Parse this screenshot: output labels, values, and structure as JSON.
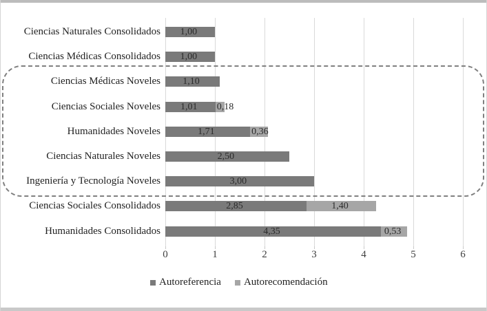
{
  "chart_data": {
    "type": "bar",
    "orientation": "horizontal",
    "stacked": true,
    "title": "",
    "xlabel": "",
    "ylabel": "",
    "xlim": [
      0,
      6
    ],
    "x_ticks": [
      "0",
      "1",
      "2",
      "3",
      "4",
      "5",
      "6"
    ],
    "grid": true,
    "legend_position": "bottom",
    "categories": [
      "Ciencias Naturales Consolidados",
      "Ciencias Médicas Consolidados",
      "Ciencias Médicas Noveles",
      "Ciencias Sociales Noveles",
      "Humanidades Noveles",
      "Ciencias Naturales Noveles",
      "Ingeniería y Tecnología Noveles",
      "Ciencias Sociales Consolidados",
      "Humanidades Consolidados"
    ],
    "series": [
      {
        "name": "Autoreferencia",
        "color": "#7a7a7a",
        "values": [
          1.0,
          1.0,
          1.1,
          1.01,
          1.71,
          2.5,
          3.0,
          2.85,
          4.35
        ]
      },
      {
        "name": "Autorecomendación",
        "color": "#a6a6a6",
        "values": [
          0,
          0,
          0,
          0.18,
          0.36,
          0,
          0,
          1.4,
          0.53
        ]
      }
    ],
    "value_labels": [
      [
        "1,00",
        ""
      ],
      [
        "1,00",
        ""
      ],
      [
        "1,10",
        ""
      ],
      [
        "1,01",
        "0,18"
      ],
      [
        "1,71",
        "0,36"
      ],
      [
        "2,50",
        ""
      ],
      [
        "3,00",
        ""
      ],
      [
        "2,85",
        "1,40"
      ],
      [
        "4,35",
        "0,53"
      ]
    ],
    "annotation": {
      "type": "dashed-box",
      "encloses_categories": [
        "Ciencias Médicas Noveles",
        "Ciencias Sociales Noveles",
        "Humanidades Noveles",
        "Ciencias Naturales Noveles",
        "Ingeniería y Tecnología Noveles"
      ]
    }
  },
  "colors": {
    "autoreferencia": "#7a7a7a",
    "autorecomendacion": "#a6a6a6",
    "gridline": "#d9d9d9",
    "dashed_border": "#7f7f7f",
    "text": "#1f1f1f"
  }
}
